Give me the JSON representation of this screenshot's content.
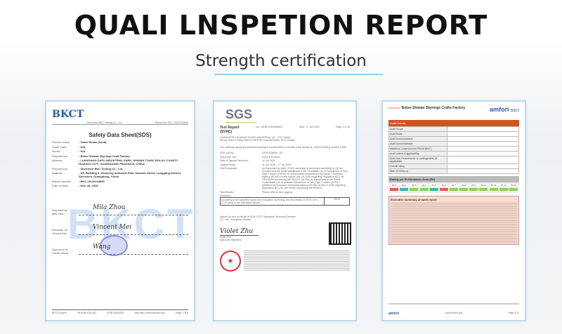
{
  "header": {
    "title": "QUALI LNSPETION REPORT",
    "subtitle": "Strength certification",
    "accent": "#9fcde8"
  },
  "documents": [
    {
      "logo": "BKCT",
      "company": "Shenzhen BKC Testing Co., Ltd.",
      "report_no_label": "Report No. BKC-19110244695",
      "title": "Safety Data Sheet(SDS)",
      "fields": [
        [
          "Product name",
          ": Glass Beads (sand)"
        ],
        [
          "Trade mark",
          ": N/A"
        ],
        [
          "Model",
          ": N/A"
        ],
        [
          "Prepared for",
          ": Boluo Shiwan Skyrings Craft Factory"
        ],
        [
          "Address",
          ": LUANGANG DAFU INDUSTRIAL PARK, SHIWAN TOWN, BOLUO COUNTY, HUIZHOU CITY, GUANGDONG PROVINCE, CHINA"
        ],
        [
          "Prepared by",
          ": Shenzhen BKC Testing Co., Ltd."
        ],
        [
          "Address",
          ": 6/F, Building 3, Zhouleng Industrial Park, Nanwan Street, Longgang District, Shenzhen, Guangdong, China"
        ],
        [
          "Report Number",
          ": BKC-19110244695"
        ],
        [
          "Date of issue",
          ": Nov. 28, 2019"
        ]
      ],
      "signatures": [
        {
          "role": "Prepared by",
          "name": "Mila Zhou",
          "sig": "Mila Zhou"
        },
        {
          "role": "Reviewer by",
          "name": "Vincent Mei",
          "sig": "Vincent Mei"
        },
        {
          "role": "Approved by",
          "name": "Corbin Wang",
          "sig": "Wang"
        }
      ],
      "footer": [
        "BKCS Report",
        "Tel:4008-875-392",
        "0755-32923341",
        "Web:http://www.bkctest.com",
        "Page 1 of 6"
      ]
    },
    {
      "logo": "SGS",
      "title": "Test Report",
      "subtitle": "(SVHC)",
      "no": "No. CANEC2009256601",
      "date": "Date: 17 Jun 2020",
      "page": "Page 1 of 16",
      "client": "GUANGZHOU HUASAO GLASS INDUSTRIAL CO., LTD. HANJI ROAD,ZHUJI TOWN,PANYU DISTRICT,GUANGZHOU CITY CHINA",
      "intro": "The following sample(s) was/were submitted and identified on behalf of the clients as : MISTOVE(SH) GLASS TUBE",
      "fields": [
        [
          "SGS Job No. :",
          "CP20-029606 - GZ"
        ],
        [
          "Client Ref. Info. :",
          "2020LS Produce"
        ],
        [
          "Date of Sample Received :",
          "11 Jun 2020"
        ],
        [
          "Testing Period :",
          "11 Jun 2020 - 17 Jun 2020"
        ],
        [
          "Test Requested :",
          "As requested by client, SVHC screening is performed according to: (I) Two hundred and five (205) substances in the Candidate List of Substances of Very High Concern (SVHC) for authorization published by European Chemicals Agency (ECHA) on and before Jan. 16, 2020 regarding Regulation (EC) No 1907/2006 concerning the REACH. (II) Five (5) substances in the Public Consultation List of potential Substances of Very High Concern (SVHC) published by European Chemicals Agency (ECHA) on Mar 3, 2020 regarding Regulation (EC) No 1907/2006 concerning the REACH."
        ],
        [
          "Test Results :",
          "Please refer to next page(s)."
        ]
      ],
      "summary_label": "Summary:",
      "summary": "According to the specified scope and evaluation screening, the test results of SVHC are ≤ 0.1% (w/w) in the submitted sample.",
      "result": "PASS",
      "signed_for": "Signed for and on behalf of SGS-CSTC Standards Technical Services Co., Ltd. Guangzhou Branch",
      "signer": "Violet Zhu",
      "signer_title": "Approved Signatory"
    },
    {
      "producer_label": "Producer:",
      "producer": "Boluo Shiwan Skyrings Crafts Factory",
      "brand": "amfori",
      "brand_sub": "BSCI",
      "section": "Audit Details",
      "rows": [
        "Audit Scope",
        "Audit Mode",
        "Audit Announcement",
        "Audit Announcement",
        "Maximum Unannounced Period (BUC)",
        "Audit extent of applicability",
        "Audit Non-Performance or contingencies (if applicable)",
        "Overall rating",
        "Start of follow-up"
      ],
      "rating_title": "Rating per Performance Area (PA)",
      "pa": [
        "PA 1",
        "PA 2",
        "PA 3",
        "PA 4",
        "PA 5",
        "PA 6",
        "PA 7",
        "PA 8",
        "PA 9",
        "PA 10",
        "PA 11",
        "PA 12",
        "PA 13"
      ],
      "pa_colors": [
        "#e45a4a",
        "#3cb8a0",
        "#8ccf5a",
        "#8ccf5a",
        "#3cb8a0",
        "#e45a4a",
        "#8ccf5a",
        "#8ccf5a",
        "#8ccf5a",
        "#8ccf5a",
        "#8ccf5a",
        "#8ccf5a",
        "#8ccf5a"
      ],
      "summary_title": "Executive summary of audit report",
      "footer_site": "www.amfori.org",
      "footer_page": "Page 1/11"
    }
  ]
}
